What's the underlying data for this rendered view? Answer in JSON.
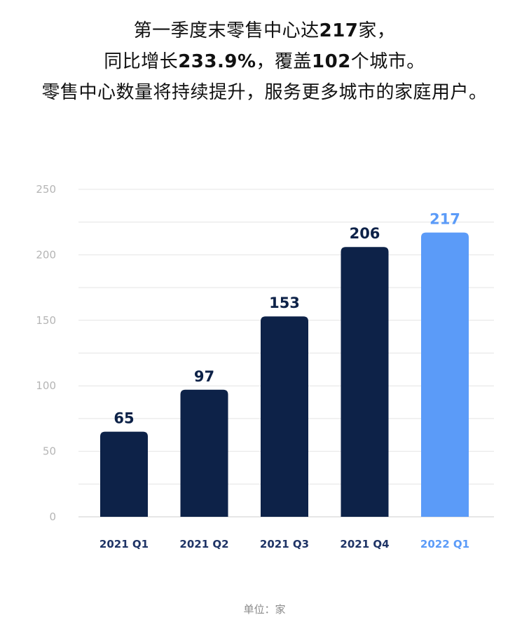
{
  "headline": {
    "line1": {
      "a": "第一季度末零售中心达",
      "b": "217",
      "c": "家，"
    },
    "line2": {
      "a": "同比增长",
      "b": "233.9%",
      "c": "，覆盖",
      "d": "102",
      "e": "个城市。"
    },
    "line3": "零售中心数量将持续提升，服务更多城市的家庭用户。"
  },
  "chart_data": {
    "type": "bar",
    "categories": [
      "2021 Q1",
      "2021 Q2",
      "2021 Q3",
      "2021 Q4",
      "2022 Q1"
    ],
    "values": [
      65,
      97,
      153,
      206,
      217
    ],
    "highlight_index": 4,
    "ylim": [
      0,
      250
    ],
    "yticks": [
      0,
      50,
      100,
      150,
      200,
      250
    ],
    "grid": true,
    "colors": {
      "bar": "#0d2248",
      "highlight": "#5b9bf8",
      "category_label": "#1f3466",
      "grid": "#e4e4e4",
      "tick": "#b5b5b5"
    },
    "unit_note": "单位：家"
  }
}
